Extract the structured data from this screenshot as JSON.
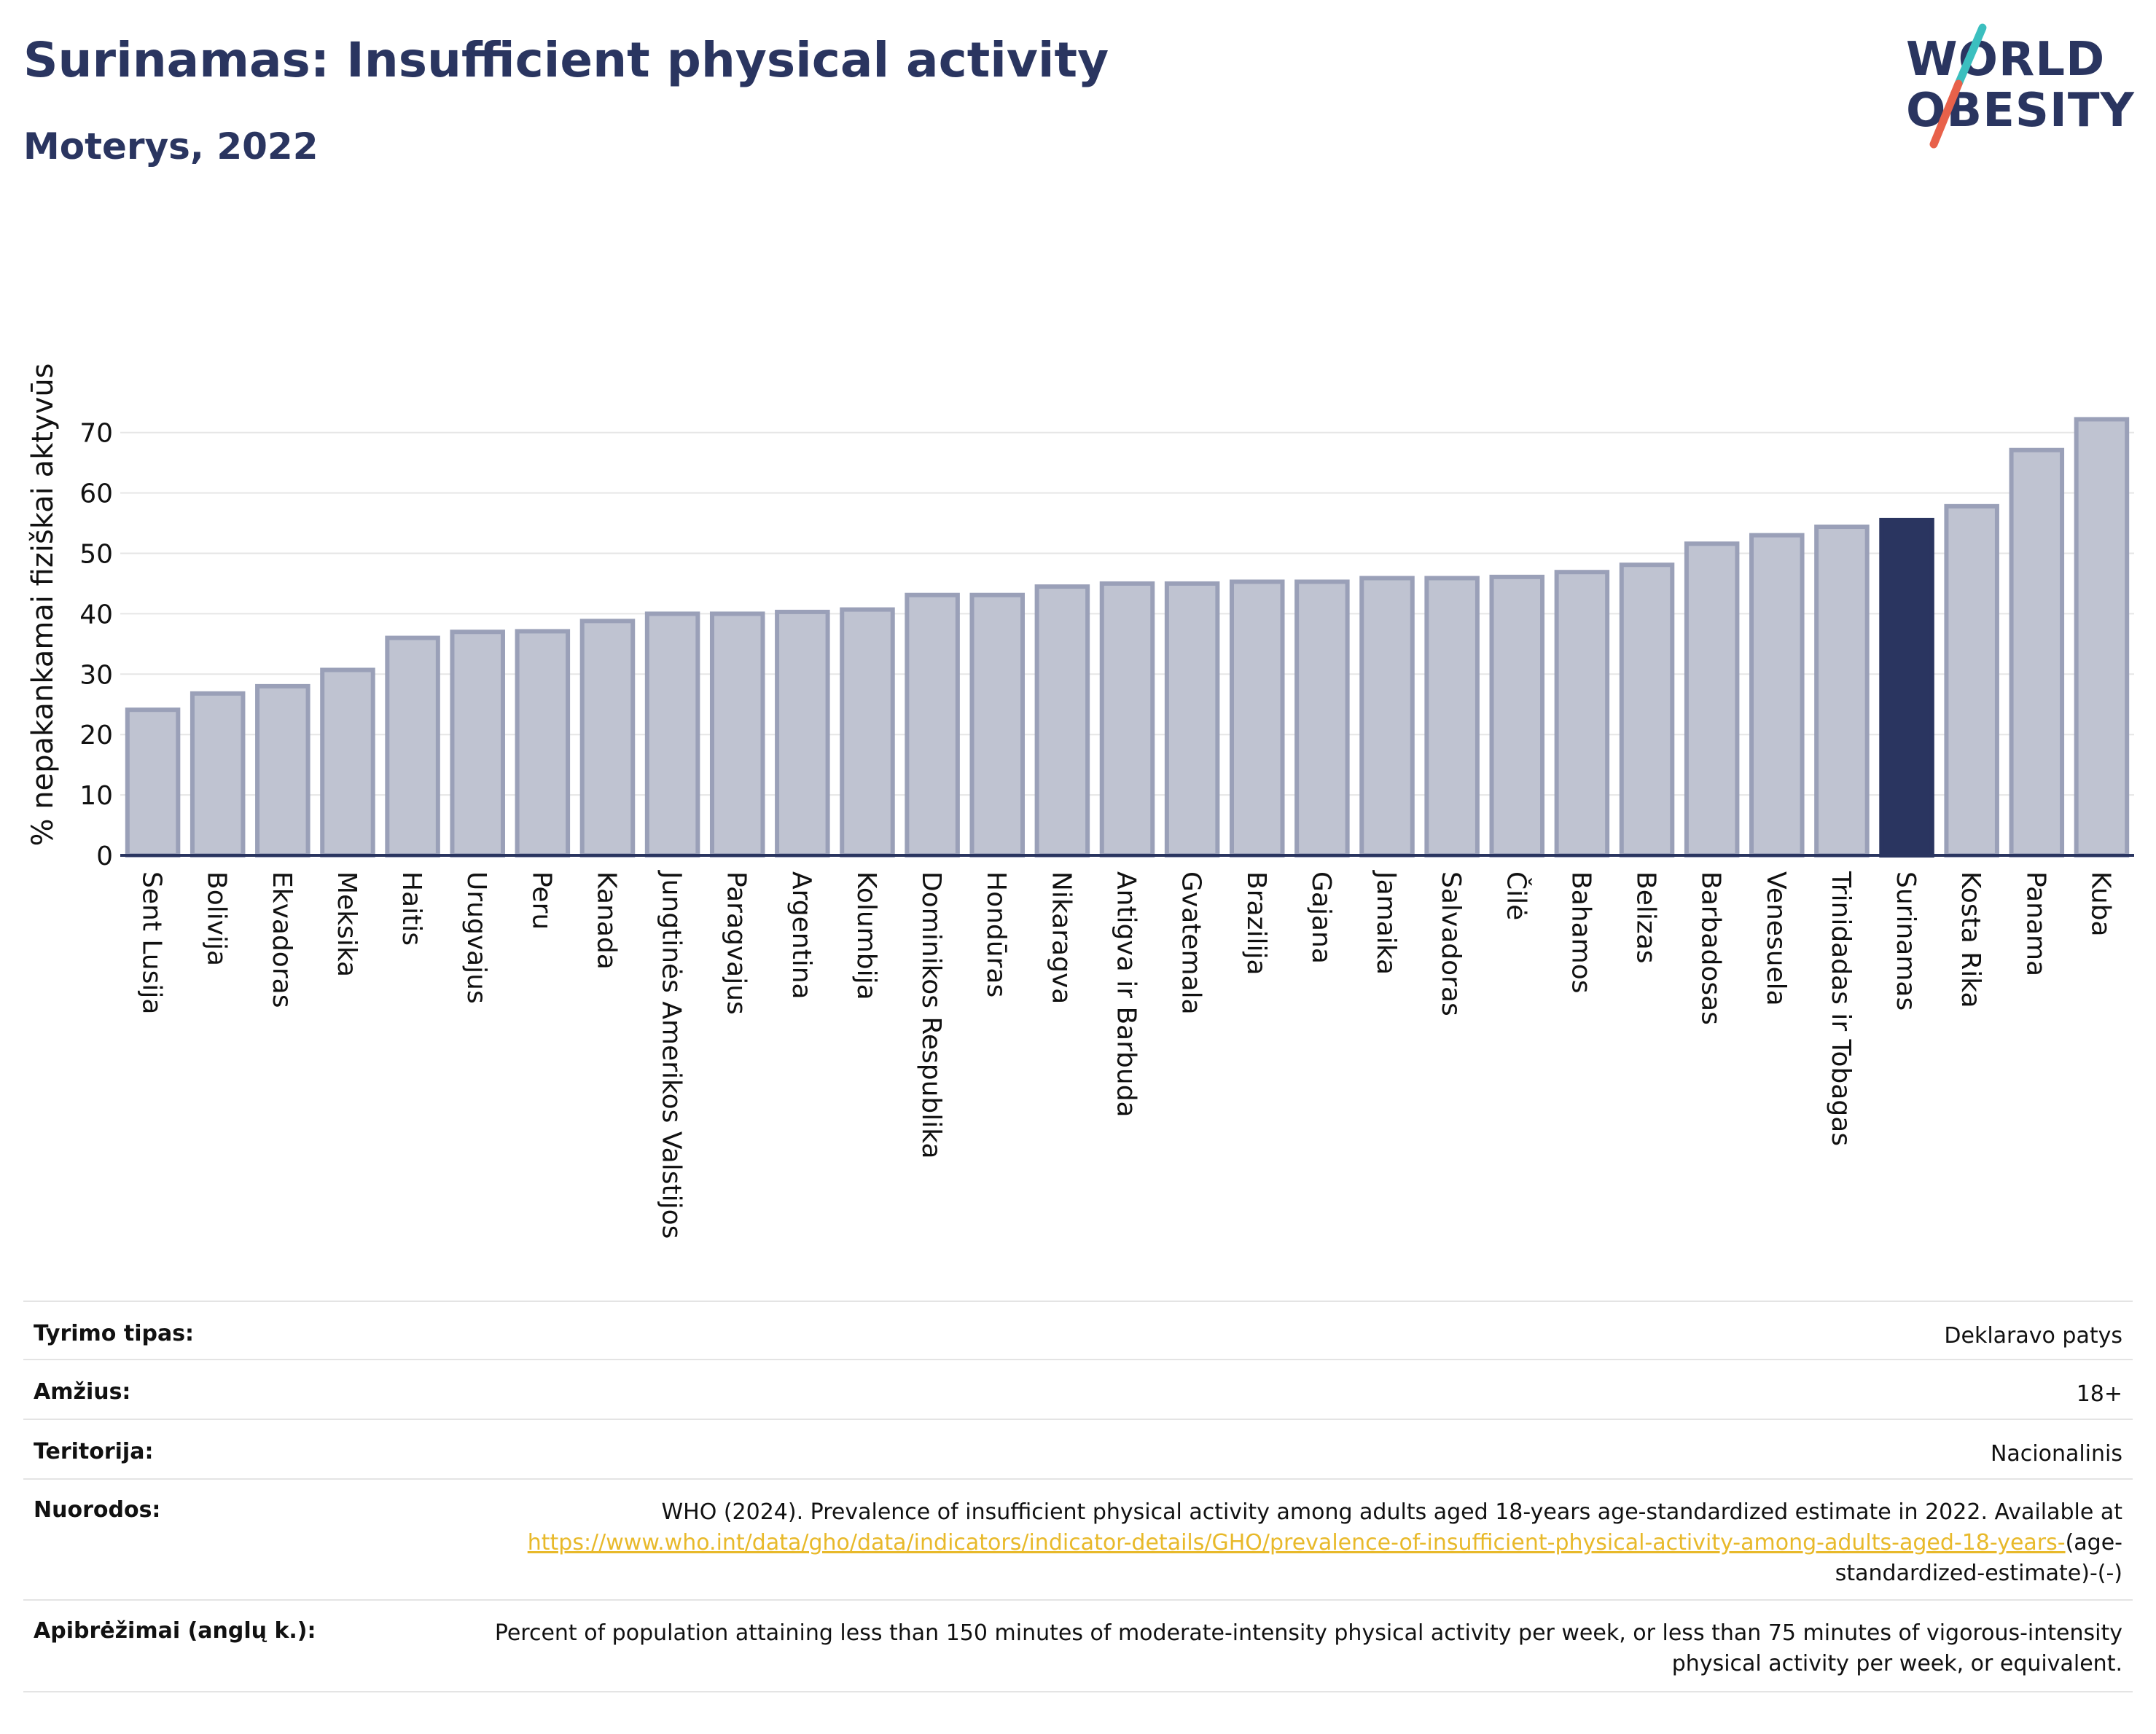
{
  "header": {
    "title": "Surinamas: Insufficient physical activity",
    "subtitle": "Moterys, 2022"
  },
  "logo": {
    "line1": "WORLD",
    "line2": "OBESITY",
    "colors": {
      "text": "#2a3560",
      "slash_top": "#3bbfbf",
      "slash_bottom": "#e8614a"
    }
  },
  "colors": {
    "bar": "#bfc3d1",
    "bar_stroke": "#9aa0b8",
    "highlight": "#2a3560",
    "grid": "#e6e6e6",
    "axis": "#2a3560",
    "link": "#e8b92a"
  },
  "chart_data": {
    "type": "bar",
    "ylabel": "% nepakankamai fiziškai aktyvūs",
    "ylim": [
      0,
      72
    ],
    "yticks": [
      0,
      10,
      20,
      30,
      40,
      50,
      60,
      70
    ],
    "grid": true,
    "highlight": "Surinamas",
    "categories": [
      "Sent Lusija",
      "Bolivija",
      "Ekvadoras",
      "Meksika",
      "Haitis",
      "Urugvajus",
      "Peru",
      "Kanada",
      "Jungtinės Amerikos Valstijos",
      "Paragvajus",
      "Argentina",
      "Kolumbija",
      "Dominikos Respublika",
      "Hondūras",
      "Nikaragva",
      "Antigva ir Barbuda",
      "Gvatemala",
      "Brazilija",
      "Gajana",
      "Jamaika",
      "Salvadoras",
      "Čilė",
      "Bahamos",
      "Belizas",
      "Barbadosas",
      "Venesuela",
      "Trinidadas ir Tobagas",
      "Surinamas",
      "Kosta Rika",
      "Panama",
      "Kuba"
    ],
    "values": [
      24.1,
      26.8,
      28.0,
      30.7,
      36.0,
      37.0,
      37.1,
      38.8,
      40.0,
      40.0,
      40.3,
      40.7,
      43.1,
      43.1,
      44.5,
      45.0,
      45.0,
      45.3,
      45.3,
      45.9,
      45.9,
      46.1,
      46.9,
      48.1,
      51.6,
      53.0,
      54.4,
      55.5,
      57.8,
      67.1,
      72.2
    ]
  },
  "info": {
    "study_type_label": "Tyrimo tipas:",
    "study_type_value": "Deklaravo patys",
    "age_label": "Amžius:",
    "age_value": "18+",
    "territory_label": "Teritorija:",
    "territory_value": "Nacionalinis",
    "references_label": "Nuorodos:",
    "references_text": "WHO (2024). Prevalence of insufficient physical activity among adults aged 18-years age-standardized estimate in 2022. Available at",
    "references_link": "https://www.who.int/data/gho/data/indicators/indicator-details/GHO/prevalence-of-insufficient-physical-activity-among-adults-aged-18-years-",
    "references_suffix": "(age-standardized-estimate)-(-)",
    "definitions_label": "Apibrėžimai (anglų k.):",
    "definitions_text": "Percent of population attaining less than 150 minutes of moderate-intensity physical activity per week, or less than 75 minutes of vigorous-intensity physical activity per week, or equivalent."
  }
}
